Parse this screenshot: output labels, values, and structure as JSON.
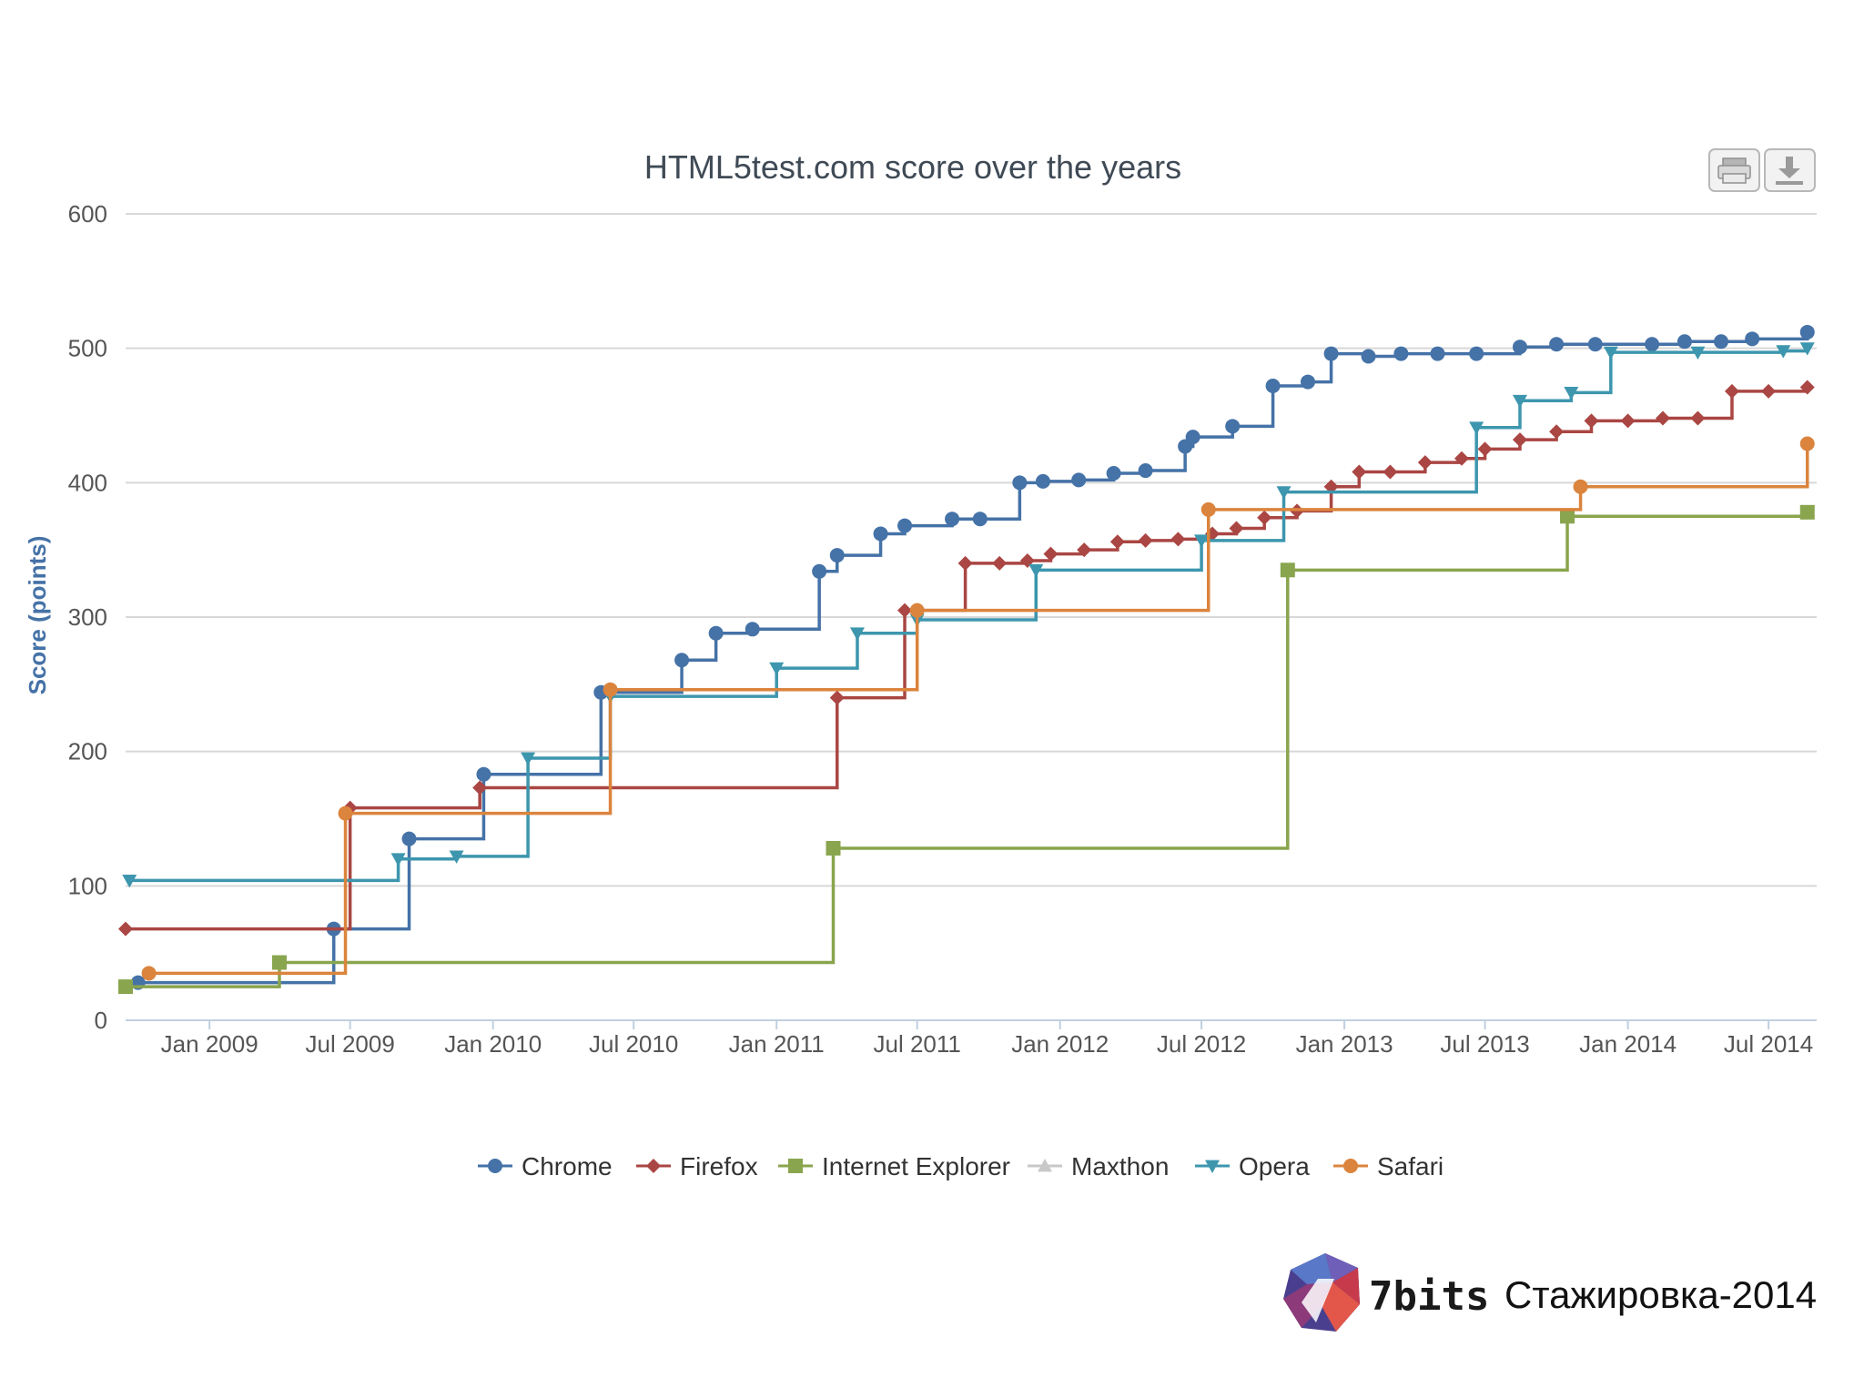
{
  "chart_data": {
    "type": "line",
    "title": "HTML5test.com score over the years",
    "ylabel": "Score (points)",
    "xlabel": "",
    "ylim": [
      0,
      600
    ],
    "yticks": [
      0,
      100,
      200,
      300,
      400,
      500,
      600
    ],
    "xlim": [
      "2008-09-15",
      "2014-09-01"
    ],
    "xticks": [
      {
        "date": "2009-01-01",
        "label": "Jan 2009"
      },
      {
        "date": "2009-07-01",
        "label": "Jul 2009"
      },
      {
        "date": "2010-01-01",
        "label": "Jan 2010"
      },
      {
        "date": "2010-07-01",
        "label": "Jul 2010"
      },
      {
        "date": "2011-01-01",
        "label": "Jan 2011"
      },
      {
        "date": "2011-07-01",
        "label": "Jul 2011"
      },
      {
        "date": "2012-01-01",
        "label": "Jan 2012"
      },
      {
        "date": "2012-07-01",
        "label": "Jul 2012"
      },
      {
        "date": "2013-01-01",
        "label": "Jan 2013"
      },
      {
        "date": "2013-07-01",
        "label": "Jul 2013"
      },
      {
        "date": "2014-01-01",
        "label": "Jan 2014"
      },
      {
        "date": "2014-07-01",
        "label": "Jul 2014"
      }
    ],
    "step": true,
    "grid": true,
    "legend_position": "bottom",
    "series": [
      {
        "name": "Chrome",
        "color": "#4572a7",
        "marker": "circle",
        "visible": true,
        "points": [
          [
            "2008-10-01",
            28
          ],
          [
            "2009-06-10",
            68
          ],
          [
            "2009-09-15",
            135
          ],
          [
            "2009-12-20",
            183
          ],
          [
            "2010-05-20",
            244
          ],
          [
            "2010-09-01",
            268
          ],
          [
            "2010-10-15",
            288
          ],
          [
            "2010-12-01",
            291
          ],
          [
            "2011-02-25",
            334
          ],
          [
            "2011-03-20",
            346
          ],
          [
            "2011-05-15",
            362
          ],
          [
            "2011-06-15",
            368
          ],
          [
            "2011-08-15",
            373
          ],
          [
            "2011-09-20",
            373
          ],
          [
            "2011-11-10",
            400
          ],
          [
            "2011-12-10",
            401
          ],
          [
            "2012-01-25",
            402
          ],
          [
            "2012-03-10",
            407
          ],
          [
            "2012-04-20",
            409
          ],
          [
            "2012-06-10",
            427
          ],
          [
            "2012-06-20",
            434
          ],
          [
            "2012-08-10",
            442
          ],
          [
            "2012-10-01",
            472
          ],
          [
            "2012-11-15",
            475
          ],
          [
            "2012-12-15",
            496
          ],
          [
            "2013-02-01",
            494
          ],
          [
            "2013-03-15",
            496
          ],
          [
            "2013-05-01",
            496
          ],
          [
            "2013-06-20",
            496
          ],
          [
            "2013-08-15",
            501
          ],
          [
            "2013-10-01",
            503
          ],
          [
            "2013-11-20",
            503
          ],
          [
            "2014-02-01",
            503
          ],
          [
            "2014-03-15",
            505
          ],
          [
            "2014-05-01",
            505
          ],
          [
            "2014-06-10",
            507
          ],
          [
            "2014-08-20",
            512
          ]
        ]
      },
      {
        "name": "Firefox",
        "color": "#aa4643",
        "marker": "diamond",
        "visible": true,
        "points": [
          [
            "2008-09-15",
            68
          ],
          [
            "2009-07-01",
            158
          ],
          [
            "2009-12-15",
            173
          ],
          [
            "2011-03-20",
            240
          ],
          [
            "2011-06-15",
            305
          ],
          [
            "2011-09-01",
            340
          ],
          [
            "2011-10-15",
            340
          ],
          [
            "2011-11-20",
            342
          ],
          [
            "2011-12-20",
            347
          ],
          [
            "2012-02-01",
            350
          ],
          [
            "2012-03-15",
            356
          ],
          [
            "2012-04-20",
            357
          ],
          [
            "2012-06-01",
            358
          ],
          [
            "2012-07-15",
            362
          ],
          [
            "2012-08-15",
            366
          ],
          [
            "2012-09-20",
            374
          ],
          [
            "2012-11-01",
            379
          ],
          [
            "2012-12-15",
            397
          ],
          [
            "2013-01-20",
            408
          ],
          [
            "2013-03-01",
            408
          ],
          [
            "2013-04-15",
            415
          ],
          [
            "2013-06-01",
            418
          ],
          [
            "2013-07-01",
            425
          ],
          [
            "2013-08-15",
            432
          ],
          [
            "2013-10-01",
            438
          ],
          [
            "2013-11-15",
            446
          ],
          [
            "2014-01-01",
            446
          ],
          [
            "2014-02-15",
            448
          ],
          [
            "2014-04-01",
            448
          ],
          [
            "2014-05-15",
            468
          ],
          [
            "2014-07-01",
            468
          ],
          [
            "2014-08-20",
            471
          ]
        ]
      },
      {
        "name": "Internet Explorer",
        "color": "#89a54e",
        "marker": "square",
        "visible": true,
        "points": [
          [
            "2008-09-15",
            25
          ],
          [
            "2009-04-01",
            43
          ],
          [
            "2011-03-15",
            128
          ],
          [
            "2012-10-20",
            335
          ],
          [
            "2013-10-15",
            375
          ],
          [
            "2014-08-20",
            378
          ]
        ]
      },
      {
        "name": "Maxthon",
        "color": "#c0c0c0",
        "marker": "triangle",
        "visible": false,
        "points": []
      },
      {
        "name": "Opera",
        "color": "#3d96ae",
        "marker": "triangle-down",
        "visible": true,
        "points": [
          [
            "2008-09-20",
            104
          ],
          [
            "2009-09-01",
            120
          ],
          [
            "2009-11-15",
            122
          ],
          [
            "2010-02-15",
            195
          ],
          [
            "2010-06-01",
            241
          ],
          [
            "2011-01-01",
            262
          ],
          [
            "2011-04-15",
            288
          ],
          [
            "2011-07-01",
            298
          ],
          [
            "2011-12-01",
            335
          ],
          [
            "2012-07-01",
            357
          ],
          [
            "2012-10-15",
            393
          ],
          [
            "2013-06-20",
            441
          ],
          [
            "2013-08-15",
            461
          ],
          [
            "2013-10-20",
            467
          ],
          [
            "2013-12-10",
            497
          ],
          [
            "2014-04-01",
            497
          ],
          [
            "2014-07-20",
            498
          ],
          [
            "2014-08-20",
            500
          ]
        ]
      },
      {
        "name": "Safari",
        "color": "#db843d",
        "marker": "circle",
        "visible": true,
        "points": [
          [
            "2008-10-15",
            35
          ],
          [
            "2009-06-25",
            154
          ],
          [
            "2010-06-01",
            246
          ],
          [
            "2011-07-01",
            305
          ],
          [
            "2012-07-10",
            380
          ],
          [
            "2013-11-01",
            397
          ],
          [
            "2014-08-20",
            429
          ]
        ]
      }
    ]
  },
  "toolbar": {
    "print_icon": "printer-icon",
    "download_icon": "download-icon"
  },
  "brand": {
    "name": "7bits",
    "caption": "Стажировка-2014",
    "logo_icon": "7bits-logo-icon"
  }
}
